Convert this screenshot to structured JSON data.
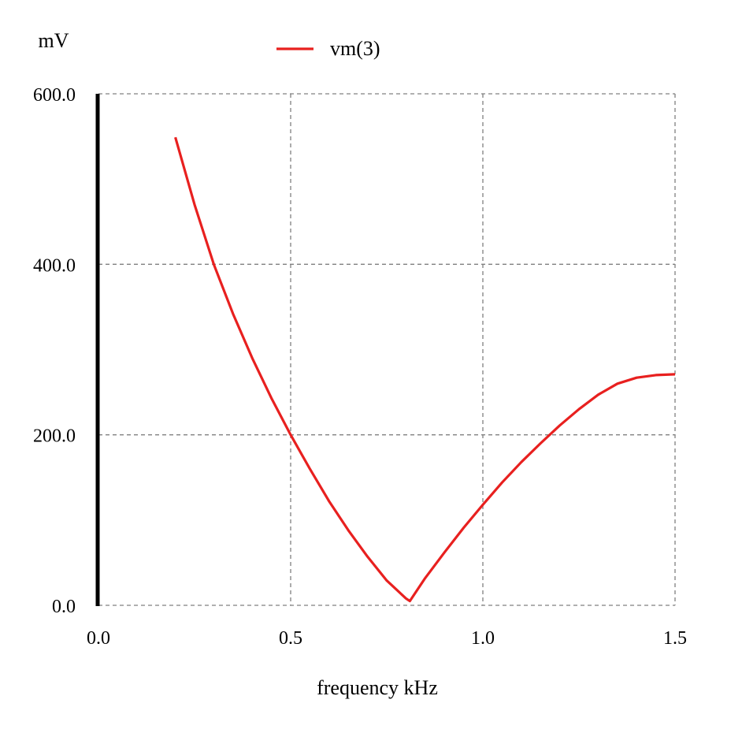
{
  "chart_data": {
    "type": "line",
    "title": "",
    "xlabel": "frequency kHz",
    "ylabel": "mV",
    "xlim": [
      0.0,
      1.5
    ],
    "ylim": [
      0.0,
      600.0
    ],
    "grid": true,
    "legend_position": "top",
    "x_ticks": [
      "0.0",
      "0.5",
      "1.0",
      "1.5"
    ],
    "y_ticks": [
      "0.0",
      "200.0",
      "400.0",
      "600.0"
    ],
    "series": [
      {
        "name": "vm(3)",
        "color": "#e8201f",
        "x": [
          0.2,
          0.25,
          0.3,
          0.35,
          0.4,
          0.45,
          0.5,
          0.55,
          0.6,
          0.65,
          0.7,
          0.75,
          0.8,
          0.81,
          0.85,
          0.9,
          0.95,
          1.0,
          1.05,
          1.1,
          1.15,
          1.2,
          1.25,
          1.3,
          1.35,
          1.4,
          1.45,
          1.5
        ],
        "values": [
          549,
          470,
          400,
          342,
          290,
          243,
          200,
          160,
          122,
          88,
          57,
          29,
          8,
          5,
          32,
          62,
          91,
          118,
          144,
          168,
          190,
          211,
          230,
          247,
          260,
          267,
          270,
          271
        ]
      }
    ]
  },
  "legend": {
    "label": "vm(3)"
  },
  "axes": {
    "y_unit": "mV",
    "x_title": "frequency kHz"
  }
}
